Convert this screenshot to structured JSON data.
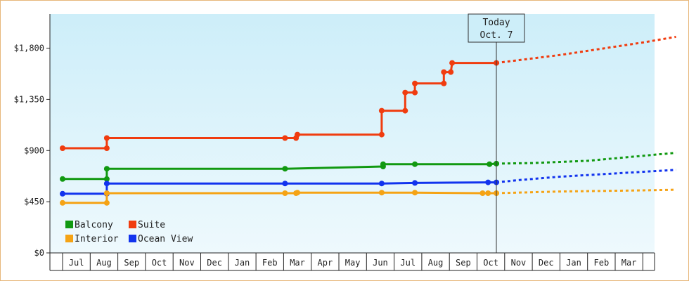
{
  "chart_data": {
    "type": "line",
    "title": "",
    "xlabel": "",
    "ylabel": "",
    "ylim": [
      0,
      2100
    ],
    "yticks": [
      0,
      450,
      900,
      1350,
      1800
    ],
    "ytick_labels": [
      "$0",
      "$450",
      "$900",
      "$1,350",
      "$1,800"
    ],
    "x_start": "Jun",
    "x_end": "Apr",
    "month_ticks": [
      "Jul",
      "Aug",
      "Sep",
      "Oct",
      "Nov",
      "Dec",
      "Jan",
      "Feb",
      "Mar",
      "Apr",
      "May",
      "Jun",
      "Jul",
      "Aug",
      "Sep",
      "Oct",
      "Nov",
      "Dec",
      "Jan",
      "Feb",
      "Mar"
    ],
    "today": {
      "line1": "Today",
      "line2": "Oct. 7",
      "x": 15.7
    },
    "background_gradient": [
      "#cdeef9",
      "#eef9fd"
    ],
    "legend": {
      "placement": "bottom-left",
      "order": [
        "Balcony",
        "Suite",
        "Interior",
        "Ocean View"
      ]
    },
    "series": [
      {
        "name": "Suite",
        "color": "#f03c0f",
        "points": [
          [
            0,
            920
          ],
          [
            1.6,
            920
          ],
          [
            1.6,
            1010
          ],
          [
            1.65,
            1010
          ],
          [
            8.05,
            1010
          ],
          [
            8.45,
            1010
          ],
          [
            8.5,
            1040
          ],
          [
            11.55,
            1040
          ],
          [
            11.55,
            1250
          ],
          [
            12.4,
            1250
          ],
          [
            12.4,
            1410
          ],
          [
            12.75,
            1410
          ],
          [
            12.75,
            1490
          ],
          [
            13.8,
            1490
          ],
          [
            13.8,
            1590
          ],
          [
            14.05,
            1590
          ],
          [
            14.1,
            1670
          ],
          [
            15.7,
            1670
          ]
        ],
        "markers": [
          [
            0,
            920
          ],
          [
            1.6,
            920
          ],
          [
            1.6,
            1010
          ],
          [
            8.05,
            1010
          ],
          [
            8.45,
            1010
          ],
          [
            8.5,
            1040
          ],
          [
            11.55,
            1040
          ],
          [
            11.55,
            1250
          ],
          [
            12.4,
            1250
          ],
          [
            12.4,
            1410
          ],
          [
            12.75,
            1410
          ],
          [
            12.75,
            1490
          ],
          [
            13.8,
            1490
          ],
          [
            13.8,
            1590
          ],
          [
            14.05,
            1590
          ],
          [
            14.1,
            1670
          ],
          [
            15.7,
            1670
          ]
        ],
        "forecast": [
          [
            15.7,
            1670
          ],
          [
            18,
            1740
          ],
          [
            21,
            1850
          ],
          [
            22.2,
            1900
          ]
        ]
      },
      {
        "name": "Balcony",
        "color": "#119911",
        "points": [
          [
            0,
            650
          ],
          [
            1.6,
            650
          ],
          [
            1.6,
            740
          ],
          [
            8.05,
            740
          ],
          [
            11.6,
            760
          ],
          [
            11.6,
            780
          ],
          [
            12.75,
            780
          ],
          [
            15.45,
            780
          ],
          [
            15.7,
            785
          ]
        ],
        "markers": [
          [
            0,
            650
          ],
          [
            1.6,
            650
          ],
          [
            1.6,
            740
          ],
          [
            8.05,
            740
          ],
          [
            11.6,
            760
          ],
          [
            11.6,
            780
          ],
          [
            12.75,
            780
          ],
          [
            15.45,
            780
          ],
          [
            15.7,
            785
          ]
        ],
        "forecast": [
          [
            15.7,
            785
          ],
          [
            17,
            790
          ],
          [
            19,
            810
          ],
          [
            22.2,
            880
          ]
        ]
      },
      {
        "name": "Ocean View",
        "color": "#1133ee",
        "points": [
          [
            0,
            520
          ],
          [
            1.6,
            520
          ],
          [
            1.6,
            610
          ],
          [
            8.05,
            610
          ],
          [
            11.55,
            610
          ],
          [
            12.75,
            615
          ],
          [
            15.4,
            620
          ],
          [
            15.7,
            620
          ]
        ],
        "markers": [
          [
            0,
            520
          ],
          [
            1.6,
            520
          ],
          [
            1.6,
            610
          ],
          [
            8.05,
            610
          ],
          [
            11.55,
            610
          ],
          [
            12.75,
            615
          ],
          [
            15.4,
            620
          ],
          [
            15.7,
            620
          ]
        ],
        "forecast": [
          [
            15.7,
            620
          ],
          [
            16.5,
            640
          ],
          [
            18,
            670
          ],
          [
            22.2,
            730
          ]
        ]
      },
      {
        "name": "Interior",
        "color": "#f5a315",
        "points": [
          [
            0,
            440
          ],
          [
            1.6,
            440
          ],
          [
            1.6,
            525
          ],
          [
            8.05,
            525
          ],
          [
            8.45,
            525
          ],
          [
            8.5,
            530
          ],
          [
            11.55,
            530
          ],
          [
            12.75,
            530
          ],
          [
            15.2,
            525
          ],
          [
            15.4,
            525
          ],
          [
            15.7,
            525
          ]
        ],
        "markers": [
          [
            0,
            440
          ],
          [
            1.6,
            440
          ],
          [
            1.6,
            525
          ],
          [
            8.05,
            525
          ],
          [
            8.45,
            525
          ],
          [
            8.5,
            530
          ],
          [
            11.55,
            530
          ],
          [
            12.75,
            530
          ],
          [
            15.2,
            525
          ],
          [
            15.4,
            525
          ],
          [
            15.7,
            525
          ]
        ],
        "forecast": [
          [
            15.7,
            525
          ],
          [
            18,
            540
          ],
          [
            21,
            550
          ],
          [
            22.2,
            555
          ]
        ]
      }
    ]
  }
}
